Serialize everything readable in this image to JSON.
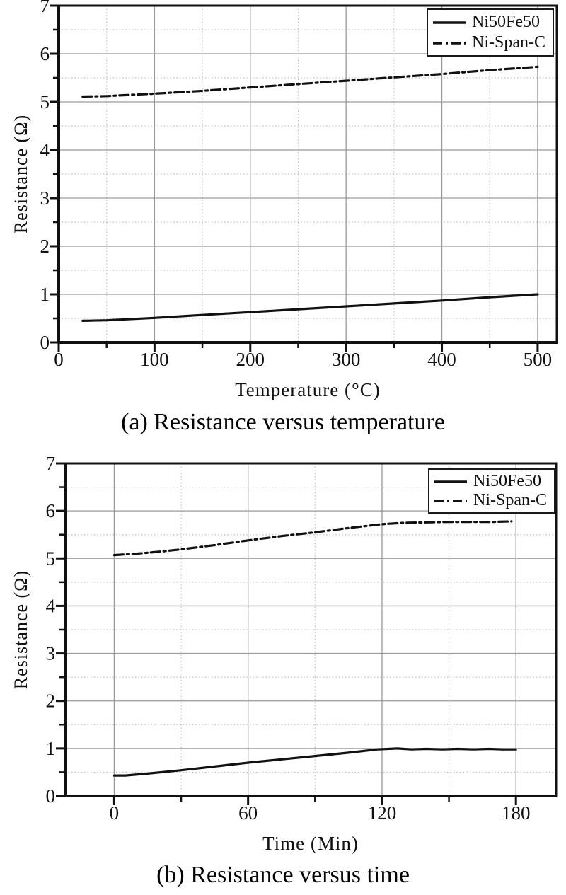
{
  "page": {
    "background": "#ffffff"
  },
  "colors": {
    "line": "#111111",
    "grid_major": "#9a9a9a",
    "grid_minor": "#c0c0c0",
    "text": "#111111",
    "legend_border": "#1a1a1a"
  },
  "chart_data": [
    {
      "id": "a",
      "type": "line",
      "title": "",
      "caption": "(a) Resistance versus temperature",
      "xlabel": "Temperature (°C)",
      "ylabel": "Resistance (Ω)",
      "xlim": [
        0,
        520
      ],
      "ylim": [
        0,
        7
      ],
      "xticks": [
        0,
        100,
        200,
        300,
        400,
        500
      ],
      "xticks_minor": [
        50,
        150,
        250,
        350,
        450
      ],
      "yticks": [
        0,
        1,
        2,
        3,
        4,
        5,
        6,
        7
      ],
      "yticks_minor": [
        0.5,
        1.5,
        2.5,
        3.5,
        4.5,
        5.5,
        6.5
      ],
      "grid": {
        "major": "solid",
        "minor": "dotted"
      },
      "legend": {
        "position": "top-right",
        "entries": [
          {
            "label": "Ni50Fe50",
            "line_style": "solid"
          },
          {
            "label": "Ni-Span-C",
            "line_style": "dash-dot"
          }
        ]
      },
      "series": [
        {
          "name": "Ni50Fe50",
          "style": "solid",
          "x": [
            25,
            50,
            100,
            150,
            200,
            250,
            300,
            350,
            400,
            450,
            500
          ],
          "y": [
            0.45,
            0.46,
            0.51,
            0.57,
            0.63,
            0.69,
            0.75,
            0.81,
            0.87,
            0.94,
            1.0
          ]
        },
        {
          "name": "Ni-Span-C",
          "style": "dash-dot",
          "x": [
            25,
            50,
            100,
            150,
            200,
            250,
            300,
            350,
            400,
            450,
            500
          ],
          "y": [
            5.11,
            5.12,
            5.17,
            5.23,
            5.3,
            5.37,
            5.44,
            5.51,
            5.58,
            5.66,
            5.73
          ]
        }
      ]
    },
    {
      "id": "b",
      "type": "line",
      "title": "",
      "caption": "(b) Resistance versus time",
      "xlabel": "Time (Min)",
      "ylabel": "Resistance (Ω)",
      "xlim": [
        -22,
        198
      ],
      "ylim": [
        0,
        7
      ],
      "xticks": [
        0,
        60,
        120,
        180
      ],
      "xticks_minor": [
        30,
        90,
        150
      ],
      "yticks": [
        0,
        1,
        2,
        3,
        4,
        5,
        6,
        7
      ],
      "yticks_minor": [
        0.5,
        1.5,
        2.5,
        3.5,
        4.5,
        5.5,
        6.5
      ],
      "grid": {
        "major": "solid",
        "minor": "dotted"
      },
      "legend": {
        "position": "top-right",
        "entries": [
          {
            "label": "Ni50Fe50",
            "line_style": "solid"
          },
          {
            "label": "Ni-Span-C",
            "line_style": "dash-dot"
          }
        ]
      },
      "series": [
        {
          "name": "Ni50Fe50",
          "style": "solid",
          "x": [
            0,
            5,
            15,
            30,
            45,
            60,
            75,
            90,
            105,
            118,
            127,
            133,
            140,
            147,
            154,
            161,
            168,
            174,
            180
          ],
          "y": [
            0.43,
            0.43,
            0.47,
            0.54,
            0.62,
            0.7,
            0.77,
            0.84,
            0.91,
            0.98,
            1.0,
            0.98,
            0.99,
            0.98,
            0.99,
            0.98,
            0.99,
            0.98,
            0.98
          ]
        },
        {
          "name": "Ni-Span-C",
          "style": "dash-dot",
          "x": [
            0,
            10,
            20,
            30,
            45,
            60,
            75,
            90,
            105,
            120,
            130,
            140,
            150,
            160,
            170,
            178
          ],
          "y": [
            5.07,
            5.1,
            5.14,
            5.19,
            5.28,
            5.38,
            5.47,
            5.55,
            5.64,
            5.72,
            5.75,
            5.76,
            5.77,
            5.77,
            5.77,
            5.78
          ]
        }
      ]
    }
  ]
}
